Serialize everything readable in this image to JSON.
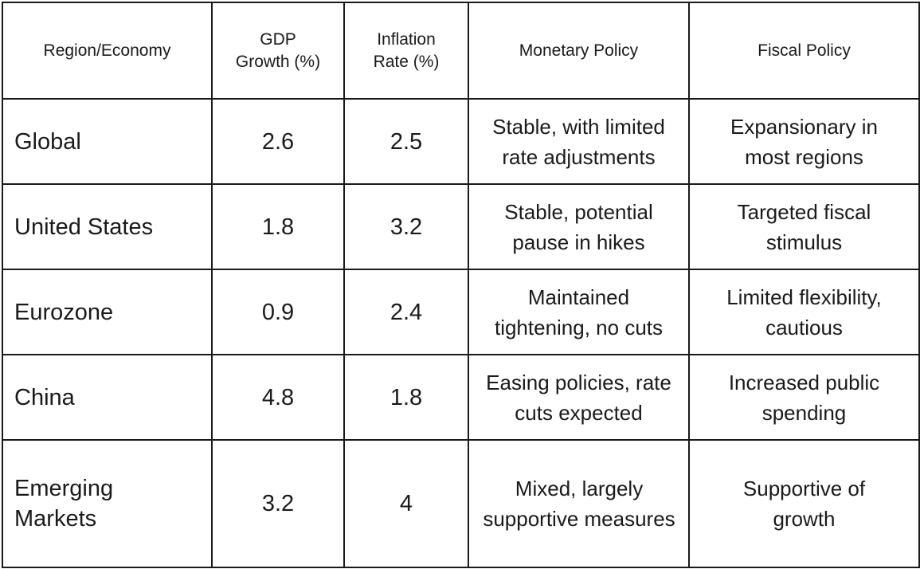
{
  "table": {
    "headers": [
      "Region/Economy",
      "GDP Growth (%)",
      "Inflation Rate (%)",
      "Monetary Policy",
      "Fiscal Policy"
    ],
    "rows": [
      {
        "region": "Global",
        "gdp_growth": "2.6",
        "inflation_rate": "2.5",
        "monetary_policy": "Stable, with limited rate adjustments",
        "fiscal_policy": "Expansionary in most regions"
      },
      {
        "region": "United States",
        "gdp_growth": "1.8",
        "inflation_rate": "3.2",
        "monetary_policy": "Stable, potential pause in hikes",
        "fiscal_policy": "Targeted fiscal stimulus"
      },
      {
        "region": "Eurozone",
        "gdp_growth": "0.9",
        "inflation_rate": "2.4",
        "monetary_policy": "Maintained tightening, no cuts",
        "fiscal_policy": "Limited flexibility, cautious"
      },
      {
        "region": "China",
        "gdp_growth": "4.8",
        "inflation_rate": "1.8",
        "monetary_policy": "Easing policies, rate cuts expected",
        "fiscal_policy": "Increased public spending"
      },
      {
        "region": "Emerging Markets",
        "gdp_growth": "3.2",
        "inflation_rate": "4",
        "monetary_policy": "Mixed, largely supportive measures",
        "fiscal_policy": "Supportive of growth"
      }
    ]
  }
}
